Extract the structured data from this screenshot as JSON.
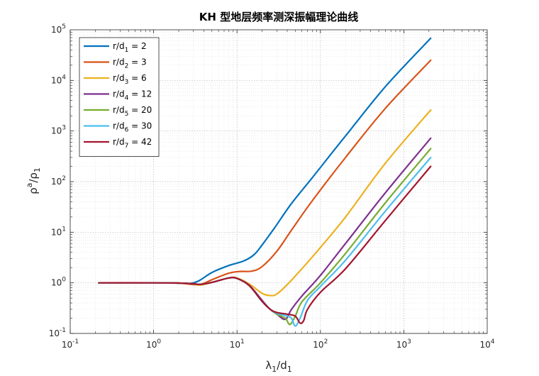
{
  "chart_data": {
    "type": "line",
    "title": "KH 型地层频率测深振幅理论曲线",
    "xscale": "log",
    "yscale": "log",
    "xlim": [
      0.1,
      10000
    ],
    "ylim": [
      0.1,
      100000
    ],
    "xlabel": {
      "base": "λ",
      "base_sub": "1",
      "mid": "/d",
      "mid_sub": "1"
    },
    "ylabel": {
      "base": "ρ",
      "base_sup": "a",
      "mid": "/ρ",
      "mid_sub": "1"
    },
    "grid": "major and minor, dotted",
    "legend_position": "top-left",
    "x_ticks": [
      {
        "base": "10",
        "exp": "-1"
      },
      {
        "base": "10",
        "exp": "0"
      },
      {
        "base": "10",
        "exp": "1"
      },
      {
        "base": "10",
        "exp": "2"
      },
      {
        "base": "10",
        "exp": "3"
      },
      {
        "base": "10",
        "exp": "4"
      }
    ],
    "y_ticks": [
      {
        "base": "10",
        "exp": "-1"
      },
      {
        "base": "10",
        "exp": "0"
      },
      {
        "base": "10",
        "exp": "1"
      },
      {
        "base": "10",
        "exp": "2"
      },
      {
        "base": "10",
        "exp": "3"
      },
      {
        "base": "10",
        "exp": "4"
      },
      {
        "base": "10",
        "exp": "5"
      }
    ],
    "series": [
      {
        "name": "r/d1 = 2",
        "label_pre": "r/d",
        "label_sub": "1",
        "label_post": " = 2",
        "color": "#0072BD",
        "points": [
          [
            0.22,
            1.0
          ],
          [
            1,
            1.0
          ],
          [
            2,
            0.99
          ],
          [
            2.7,
            0.97
          ],
          [
            3.5,
            1.1
          ],
          [
            5,
            1.6
          ],
          [
            8,
            2.2
          ],
          [
            12,
            2.7
          ],
          [
            16,
            3.6
          ],
          [
            20,
            5.6
          ],
          [
            28,
            12
          ],
          [
            45,
            37
          ],
          [
            80,
            120
          ],
          [
            200,
            800
          ],
          [
            600,
            7500
          ],
          [
            2100,
            68000
          ]
        ]
      },
      {
        "name": "r/d2 = 3",
        "label_pre": "r/d",
        "label_sub": "2",
        "label_post": " = 3",
        "color": "#D95319",
        "points": [
          [
            0.22,
            1.0
          ],
          [
            1,
            1.0
          ],
          [
            2,
            0.99
          ],
          [
            3,
            0.92
          ],
          [
            3.8,
            0.95
          ],
          [
            5,
            1.15
          ],
          [
            8,
            1.55
          ],
          [
            11,
            1.68
          ],
          [
            15,
            1.7
          ],
          [
            20,
            2.1
          ],
          [
            30,
            4.2
          ],
          [
            45,
            11
          ],
          [
            80,
            42
          ],
          [
            200,
            300
          ],
          [
            600,
            2800
          ],
          [
            2100,
            25000
          ]
        ]
      },
      {
        "name": "r/d3 = 6",
        "label_pre": "r/d",
        "label_sub": "3",
        "label_post": " = 6",
        "color": "#EDB120",
        "points": [
          [
            0.22,
            1.0
          ],
          [
            1,
            1.0
          ],
          [
            2,
            0.99
          ],
          [
            3,
            0.95
          ],
          [
            3.6,
            0.9
          ],
          [
            5,
            1.02
          ],
          [
            8,
            1.25
          ],
          [
            10,
            1.25
          ],
          [
            14,
            0.95
          ],
          [
            20,
            0.62
          ],
          [
            25,
            0.56
          ],
          [
            30,
            0.6
          ],
          [
            40,
            0.92
          ],
          [
            60,
            1.9
          ],
          [
            100,
            5
          ],
          [
            200,
            20
          ],
          [
            600,
            230
          ],
          [
            2100,
            2600
          ]
        ]
      },
      {
        "name": "r/d4 = 12",
        "label_pre": "r/d",
        "label_sub": "4",
        "label_post": " = 12",
        "color": "#7E2F8E",
        "points": [
          [
            0.22,
            1.0
          ],
          [
            1,
            1.0
          ],
          [
            2,
            0.99
          ],
          [
            3,
            0.96
          ],
          [
            3.6,
            0.93
          ],
          [
            5,
            1.02
          ],
          [
            8,
            1.25
          ],
          [
            10,
            1.22
          ],
          [
            14,
            0.9
          ],
          [
            20,
            0.45
          ],
          [
            25,
            0.3
          ],
          [
            30,
            0.24
          ],
          [
            38,
            0.19
          ],
          [
            45,
            0.3
          ],
          [
            60,
            0.55
          ],
          [
            100,
            1.4
          ],
          [
            200,
            6
          ],
          [
            600,
            60
          ],
          [
            2100,
            720
          ]
        ]
      },
      {
        "name": "r/d5 = 20",
        "label_pre": "r/d",
        "label_sub": "5",
        "label_post": " = 20",
        "color": "#77AC30",
        "points": [
          [
            0.22,
            1.0
          ],
          [
            1,
            1.0
          ],
          [
            2,
            0.99
          ],
          [
            3,
            0.96
          ],
          [
            3.6,
            0.93
          ],
          [
            5,
            1.02
          ],
          [
            8,
            1.25
          ],
          [
            10,
            1.22
          ],
          [
            14,
            0.88
          ],
          [
            20,
            0.43
          ],
          [
            25,
            0.3
          ],
          [
            30,
            0.24
          ],
          [
            38,
            0.2
          ],
          [
            43,
            0.15
          ],
          [
            50,
            0.22
          ],
          [
            60,
            0.42
          ],
          [
            100,
            1.0
          ],
          [
            200,
            3.8
          ],
          [
            600,
            38
          ],
          [
            2100,
            450
          ]
        ]
      },
      {
        "name": "r/d6 = 30",
        "label_pre": "r/d",
        "label_sub": "6",
        "label_post": " = 30",
        "color": "#4DBEEE",
        "points": [
          [
            0.22,
            1.0
          ],
          [
            1,
            1.0
          ],
          [
            2,
            0.99
          ],
          [
            3,
            0.96
          ],
          [
            3.6,
            0.93
          ],
          [
            5,
            1.02
          ],
          [
            8,
            1.25
          ],
          [
            10,
            1.22
          ],
          [
            14,
            0.88
          ],
          [
            20,
            0.43
          ],
          [
            25,
            0.3
          ],
          [
            30,
            0.25
          ],
          [
            40,
            0.22
          ],
          [
            45,
            0.2
          ],
          [
            50,
            0.14
          ],
          [
            57,
            0.2
          ],
          [
            70,
            0.45
          ],
          [
            100,
            0.85
          ],
          [
            200,
            2.8
          ],
          [
            600,
            26
          ],
          [
            2100,
            300
          ]
        ]
      },
      {
        "name": "r/d7 = 42",
        "label_pre": "r/d",
        "label_sub": "7",
        "label_post": " = 42",
        "color": "#A2142F",
        "points": [
          [
            0.22,
            1.0
          ],
          [
            1,
            1.0
          ],
          [
            2,
            0.99
          ],
          [
            3,
            0.96
          ],
          [
            3.6,
            0.93
          ],
          [
            5,
            1.02
          ],
          [
            8,
            1.25
          ],
          [
            10,
            1.22
          ],
          [
            14,
            0.88
          ],
          [
            20,
            0.43
          ],
          [
            25,
            0.3
          ],
          [
            30,
            0.26
          ],
          [
            40,
            0.24
          ],
          [
            50,
            0.22
          ],
          [
            57,
            0.16
          ],
          [
            63,
            0.18
          ],
          [
            70,
            0.3
          ],
          [
            100,
            0.65
          ],
          [
            200,
            1.9
          ],
          [
            600,
            17
          ],
          [
            2100,
            200
          ]
        ]
      }
    ]
  }
}
